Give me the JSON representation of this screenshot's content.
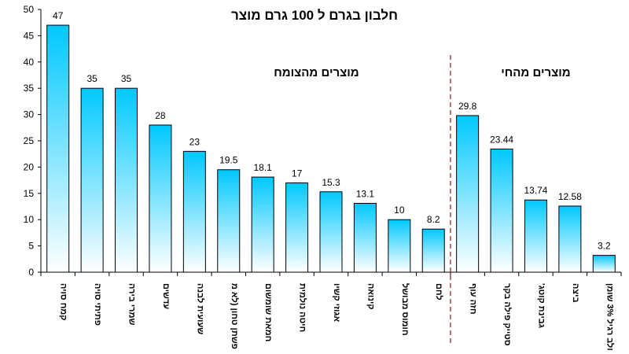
{
  "chart_data": {
    "type": "bar",
    "title": "חלבון בגרם ל 100 גרם מוצר",
    "xlabel": "",
    "ylabel": "",
    "ylim": [
      0,
      50
    ],
    "yticks": [
      0,
      5,
      10,
      15,
      20,
      25,
      30,
      35,
      40,
      45,
      50
    ],
    "grid": false,
    "categories": [
      "קמח סויה",
      "פתיתי סויה",
      "שמרי בירה",
      "עדשים",
      "שעועית לבנה",
      "פשתן טחון (לא מ",
      "חמאת שומשום",
      "חיטה נולמית",
      "אגוזי קשיו",
      "קינואה",
      "חומוס מבושל",
      "לחם",
      "חזה עוף",
      "סטייק פילה בקר",
      "גבינת קוטג'",
      "ביצה",
      "חלב רגיל 3% שומן"
    ],
    "values": [
      47,
      35,
      35,
      28,
      23,
      19.5,
      18.1,
      17,
      15.3,
      13.1,
      10,
      8.2,
      29.8,
      23.44,
      13.74,
      12.58,
      3.2
    ],
    "data_labels": [
      "47",
      "35",
      "35",
      "28",
      "23",
      "19.5",
      "18.1",
      "17",
      "15.3",
      "13.1",
      "10",
      "8.2",
      "29.8",
      "23.44",
      "13.74",
      "12.58",
      "3.2"
    ],
    "groups": [
      {
        "label": "מוצרים מהצומח",
        "count": 12
      },
      {
        "label": "מוצרים מהחי",
        "count": 5
      }
    ],
    "colors": {
      "bar_top": "#00c8ff",
      "bar_bottom": "#ffffff",
      "divider": "#8b1a1a"
    }
  }
}
